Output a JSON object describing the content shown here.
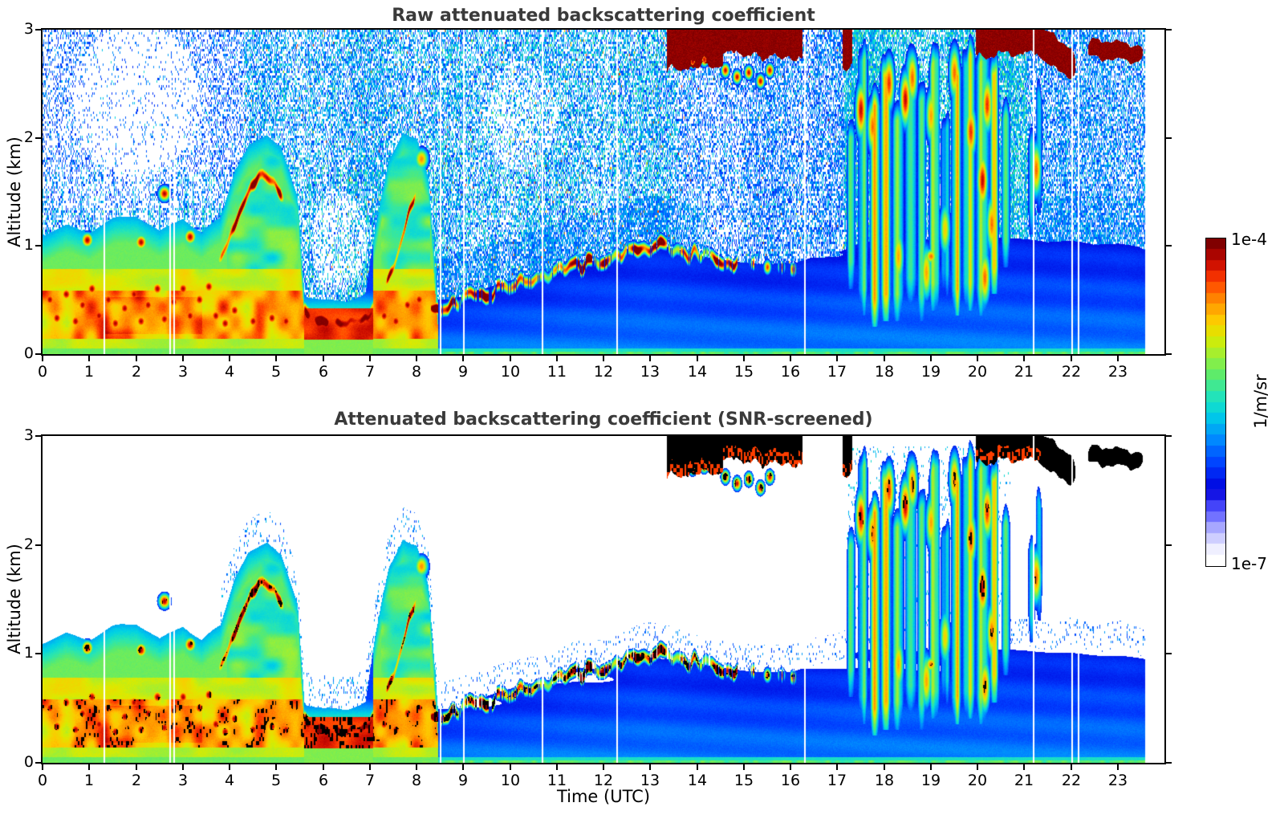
{
  "figure": {
    "background": "#ffffff",
    "axis_color": "#000000",
    "title_color": "#3a3a3a"
  },
  "panels": {
    "raw": {
      "title": "Raw attenuated backscattering coefficient"
    },
    "screened": {
      "title": "Attenuated backscattering coefficient (SNR-screened)"
    }
  },
  "axes": {
    "x": {
      "label": "Time (UTC)",
      "min": 0,
      "max": 24,
      "ticks": [
        0,
        1,
        2,
        3,
        4,
        5,
        6,
        7,
        8,
        9,
        10,
        11,
        12,
        13,
        14,
        15,
        16,
        17,
        18,
        19,
        20,
        21,
        22,
        23
      ]
    },
    "y": {
      "label": "Altitude (km)",
      "min": 0,
      "max": 3,
      "ticks": [
        0,
        1,
        2,
        3
      ]
    }
  },
  "colorbar": {
    "max_label": "1e-4",
    "min_label": "1e-7",
    "unit_label": "1/m/sr",
    "segments": 30
  },
  "chart_data": {
    "type": "heatmap",
    "panels": [
      "Raw attenuated backscattering coefficient",
      "Attenuated backscattering coefficient (SNR-screened)"
    ],
    "x": {
      "unit": "hours UTC",
      "range": [
        0,
        24
      ],
      "data_end": 23.58
    },
    "y": {
      "unit": "km",
      "range": [
        0,
        3
      ]
    },
    "value": {
      "name": "attenuated backscattering coefficient",
      "unit": "1/m/sr",
      "scale": "log10",
      "min": 1e-07,
      "max": 0.0001
    },
    "colormap_stops": [
      [
        0,
        255,
        255,
        255
      ],
      [
        0.04,
        235,
        235,
        255
      ],
      [
        0.1,
        170,
        170,
        255
      ],
      [
        0.16,
        80,
        80,
        255
      ],
      [
        0.22,
        0,
        0,
        220
      ],
      [
        0.3,
        0,
        60,
        255
      ],
      [
        0.38,
        0,
        140,
        255
      ],
      [
        0.46,
        0,
        210,
        230
      ],
      [
        0.52,
        40,
        230,
        180
      ],
      [
        0.58,
        90,
        235,
        110
      ],
      [
        0.64,
        150,
        240,
        60
      ],
      [
        0.7,
        220,
        235,
        0
      ],
      [
        0.76,
        255,
        200,
        0
      ],
      [
        0.82,
        255,
        140,
        0
      ],
      [
        0.88,
        255,
        60,
        0
      ],
      [
        0.94,
        200,
        10,
        0
      ],
      [
        1,
        128,
        0,
        0
      ]
    ],
    "render": {
      "gap_hours": [
        1.3,
        2.72,
        2.8,
        8.5,
        9.0,
        10.68,
        12.28,
        16.3,
        21.18,
        22.0,
        22.15
      ],
      "bl_height": [
        [
          0,
          1.1
        ],
        [
          0.5,
          1.18
        ],
        [
          1,
          1.12
        ],
        [
          1.5,
          1.25
        ],
        [
          2,
          1.3
        ],
        [
          2.5,
          1.15
        ],
        [
          3,
          1.28
        ],
        [
          3.4,
          1.12
        ],
        [
          3.8,
          1.25
        ],
        [
          4.1,
          1.7
        ],
        [
          4.4,
          1.95
        ],
        [
          4.8,
          2.05
        ],
        [
          5.1,
          1.95
        ],
        [
          5.45,
          1.5
        ],
        [
          5.6,
          0.55
        ],
        [
          6,
          0.5
        ],
        [
          6.5,
          0.48
        ],
        [
          6.9,
          0.55
        ],
        [
          7.1,
          1.1
        ],
        [
          7.4,
          1.75
        ],
        [
          7.7,
          2.1
        ],
        [
          8,
          2
        ],
        [
          8.25,
          1.6
        ],
        [
          8.45,
          0.5
        ],
        [
          9,
          0.55
        ],
        [
          9.5,
          0.6
        ],
        [
          10,
          0.66
        ],
        [
          10.5,
          0.72
        ],
        [
          11,
          0.78
        ],
        [
          11.5,
          0.85
        ],
        [
          12,
          0.92
        ],
        [
          12.5,
          0.98
        ],
        [
          13,
          1.02
        ],
        [
          13.4,
          1
        ],
        [
          13.8,
          0.92
        ],
        [
          14.3,
          0.87
        ],
        [
          15,
          0.83
        ],
        [
          15.5,
          0.85
        ],
        [
          16,
          0.82
        ],
        [
          16.5,
          0.86
        ],
        [
          17,
          0.92
        ],
        [
          17.5,
          1
        ],
        [
          18,
          1.05
        ],
        [
          18.5,
          1
        ],
        [
          19,
          0.98
        ],
        [
          19.5,
          1.02
        ],
        [
          20,
          1.05
        ],
        [
          20.6,
          1.1
        ],
        [
          21,
          1.08
        ],
        [
          21.5,
          1.02
        ],
        [
          22,
          1.06
        ],
        [
          22.5,
          1
        ],
        [
          23,
          1.05
        ],
        [
          23.6,
          0.98
        ]
      ],
      "ridge": {
        "path": [
          [
            8.35,
            0.42
          ],
          [
            9,
            0.5
          ],
          [
            9.5,
            0.56
          ],
          [
            10,
            0.62
          ],
          [
            10.5,
            0.68
          ],
          [
            11,
            0.75
          ],
          [
            11.5,
            0.82
          ],
          [
            12,
            0.88
          ],
          [
            12.4,
            0.93
          ],
          [
            12.8,
            0.98
          ],
          [
            13.2,
            1
          ],
          [
            13.5,
            0.97
          ],
          [
            13.9,
            0.92
          ],
          [
            14.3,
            0.89
          ],
          [
            14.8,
            0.86
          ]
        ],
        "w": 0.045,
        "amp": 0.96
      },
      "ridge_tail": [
        [
          15.2,
          0.84
        ],
        [
          15.5,
          0.8
        ],
        [
          15.8,
          0.8
        ],
        [
          16.05,
          0.78
        ]
      ],
      "arcs": [
        {
          "path": [
            [
              3.7,
              0.78
            ],
            [
              3.95,
              1
            ],
            [
              4.2,
              1.3
            ],
            [
              4.45,
              1.55
            ],
            [
              4.7,
              1.65
            ],
            [
              4.95,
              1.58
            ],
            [
              5.2,
              1.4
            ]
          ],
          "w": 0.055,
          "amp": 0.97,
          "cls": 1
        },
        {
          "path": [
            [
              5.5,
              0.42
            ],
            [
              5.8,
              0.33
            ],
            [
              6.2,
              0.3
            ],
            [
              6.6,
              0.3
            ],
            [
              6.95,
              0.34
            ],
            [
              7.15,
              0.5
            ]
          ],
          "w": 0.065,
          "amp": 0.98,
          "cls": 6
        },
        {
          "path": [
            [
              7.25,
              0.55
            ],
            [
              7.5,
              0.8
            ],
            [
              7.7,
              1.1
            ],
            [
              7.9,
              1.4
            ],
            [
              8.05,
              1.58
            ]
          ],
          "w": 0.05,
          "amp": 0.95,
          "cls": 1
        },
        {
          "path": [
            [
              21.2,
              2.93
            ],
            [
              21.6,
              2.82
            ],
            [
              21.9,
              2.72
            ],
            [
              22.1,
              2.66
            ]
          ],
          "w": 0.09,
          "amp": 1,
          "cls": 4
        },
        {
          "path": [
            [
              22.35,
              2.82
            ],
            [
              22.8,
              2.8
            ],
            [
              23.2,
              2.78
            ],
            [
              23.55,
              2.8
            ]
          ],
          "w": 0.05,
          "amp": 0.93,
          "cls": 4
        }
      ],
      "blobs": [
        [
          0.15,
          0.5
        ],
        [
          0.3,
          0.33
        ],
        [
          0.5,
          0.55
        ],
        [
          0.7,
          0.3
        ],
        [
          0.85,
          0.45
        ],
        [
          1.05,
          0.6
        ],
        [
          1.2,
          0.35
        ],
        [
          1.4,
          0.5
        ],
        [
          1.55,
          0.28
        ],
        [
          1.75,
          0.42
        ],
        [
          1.95,
          0.55
        ],
        [
          2.1,
          0.3
        ],
        [
          2.25,
          0.45
        ],
        [
          2.45,
          0.6
        ],
        [
          2.6,
          0.32
        ],
        [
          2.8,
          0.48
        ],
        [
          3,
          0.6
        ],
        [
          3.15,
          0.35
        ],
        [
          3.35,
          0.5
        ],
        [
          3.55,
          0.62
        ],
        [
          3.7,
          0.35
        ],
        [
          3.9,
          0.28
        ],
        [
          4.1,
          0.4
        ],
        [
          4.5,
          0.3
        ],
        [
          4.9,
          0.33
        ],
        [
          5.2,
          0.3
        ],
        [
          7.3,
          0.35
        ],
        [
          7.55,
          0.3
        ],
        [
          7.8,
          0.45
        ],
        [
          8.05,
          0.5
        ],
        [
          0.95,
          1.05
        ],
        [
          2.1,
          1.03
        ],
        [
          3.15,
          1.08
        ],
        [
          2.6,
          1.48
        ],
        [
          8.1,
          1.8,
          0.82,
          0.12,
          0.08
        ],
        [
          19,
          0.9,
          0.85
        ]
      ],
      "clouds": [
        {
          "t0": 13.35,
          "t1": 14.55,
          "zb": 2.78,
          "zt": 3.02
        },
        {
          "t0": 14.55,
          "t1": 16.25,
          "zb": 2.88,
          "zt": 3.02
        },
        {
          "t0": 17.1,
          "t1": 17.32,
          "zb": 2.78,
          "zt": 3.02
        },
        {
          "t0": 19.95,
          "t1": 21.35,
          "zb": 2.88,
          "zt": 3.02
        }
      ],
      "cloud_fragments": [
        [
          14.6,
          2.62
        ],
        [
          14.85,
          2.56
        ],
        [
          15.1,
          2.6
        ],
        [
          15.35,
          2.52
        ],
        [
          15.55,
          2.62
        ],
        [
          13.9,
          2.7
        ],
        [
          14.15,
          2.72
        ]
      ],
      "virga_streaks": [
        [
          17.3,
          2.2,
          0.6,
          0.07,
          0.55
        ],
        [
          17.55,
          2.95,
          0.35,
          0.09,
          0.6
        ],
        [
          17.8,
          2.5,
          0.25,
          0.08,
          0.62
        ],
        [
          18.05,
          2.85,
          0.3,
          0.1,
          0.62
        ],
        [
          18.3,
          2.45,
          0.3,
          0.09,
          0.6
        ],
        [
          18.55,
          2.95,
          0.45,
          0.1,
          0.63
        ],
        [
          18.8,
          2.6,
          0.3,
          0.08,
          0.6
        ],
        [
          19.05,
          2.9,
          0.4,
          0.1,
          0.62
        ],
        [
          19.3,
          2.35,
          0.5,
          0.08,
          0.58
        ],
        [
          19.55,
          2.85,
          0.35,
          0.09,
          0.62
        ],
        [
          19.8,
          2.95,
          0.4,
          0.1,
          0.64
        ],
        [
          20.1,
          2.95,
          0.35,
          0.11,
          0.66
        ],
        [
          20.35,
          2.85,
          0.55,
          0.09,
          0.6
        ],
        [
          20.6,
          2.4,
          0.8,
          0.08,
          0.55
        ],
        [
          21.15,
          2.2,
          1.1,
          0.07,
          0.45
        ],
        [
          21.3,
          2.6,
          1.3,
          0.06,
          0.45
        ]
      ],
      "virga_cores": [
        [
          17.5,
          2.25,
          0.95
        ],
        [
          17.75,
          2.1,
          0.85
        ],
        [
          18.1,
          2.5,
          0.9
        ],
        [
          18.45,
          2.35,
          0.95
        ],
        [
          18.6,
          2.55,
          0.85
        ],
        [
          19,
          2.2,
          0.8
        ],
        [
          19.5,
          2.6,
          0.85
        ],
        [
          19.85,
          2.05,
          0.9
        ],
        [
          20.1,
          1.6,
          0.95
        ],
        [
          20.2,
          2.3,
          0.9
        ],
        [
          20.3,
          1.2,
          0.85
        ],
        [
          21.25,
          1.7,
          0.85
        ],
        [
          18.3,
          0.9,
          0.8
        ],
        [
          18.9,
          0.75,
          0.8
        ],
        [
          19.3,
          1.15,
          0.75
        ],
        [
          20.15,
          0.7,
          0.85
        ]
      ],
      "noise_regions": [
        {
          "t0": 0,
          "t1": 24,
          "z0": 0,
          "z1": 3,
          "p": 0.42,
          "v0": 0.27,
          "vs": 0.17
        },
        {
          "t0": 0,
          "t1": 4.3,
          "z0": 1.35,
          "z1": 3,
          "p": 0.3,
          "v0": 0.27,
          "vs": 0.12
        },
        {
          "t0": 4.3,
          "t1": 8.45,
          "z0": 0,
          "z1": 3,
          "p": 0.5,
          "v0": 0.28,
          "vs": 0.2,
          "bright": 0.01
        },
        {
          "t0": 8.45,
          "t1": 13.6,
          "z0": 0,
          "z1": 3,
          "p": 0.52,
          "v0": 0.28,
          "vs": 0.22,
          "bright": 0.012
        },
        {
          "t0": 13.6,
          "t1": 17.15,
          "z0": 0,
          "z1": 3,
          "p": 0.5,
          "v0": 0.27,
          "vs": 0.15,
          "bright": 0.008
        },
        {
          "t0": 17.15,
          "t1": 21.05,
          "z0": 0.7,
          "z1": 3,
          "p": 0.72,
          "v0": 0.33,
          "vs": 0.2
        },
        {
          "t0": 21.05,
          "t1": 23.6,
          "z0": 0,
          "z1": 3,
          "p": 0.52,
          "v0": 0.28,
          "vs": 0.16
        },
        {
          "t0": 21.05,
          "t1": 23.6,
          "z0": 0,
          "z1": 1.45,
          "p": 0.65,
          "v0": 0.3,
          "vs": 0.13
        }
      ],
      "ridge_halo": {
        "t0": 8.35,
        "t1": 14.2,
        "dz": 0.45,
        "p": 0.7,
        "v0": 0.3,
        "vs": 0.13
      },
      "noise_holes": [
        {
          "tc": 2,
          "zc": 2.35,
          "rt": 1.35,
          "rz": 0.7,
          "f": 0.3
        },
        {
          "tc": 6.35,
          "zc": 1.05,
          "rt": 0.6,
          "rz": 0.45,
          "f": 0.45
        },
        {
          "tc": 10.2,
          "zc": 2.2,
          "rt": 0.8,
          "rz": 0.5,
          "f": 0.6
        }
      ],
      "bottom_noise": [
        {
          "t0": 8.45,
          "t1": 24,
          "rel": 1,
          "dz": 0.25,
          "p": 0.08,
          "v0": 0.3,
          "vs": 0.1
        },
        {
          "t0": 3.8,
          "t1": 8.45,
          "rel": 1,
          "dz": 0.3,
          "p": 0.1,
          "v0": 0.3,
          "vs": 0.15
        },
        {
          "t0": 17.2,
          "t1": 20.7,
          "z0": 0.9,
          "z1": 2.9,
          "p": 0.06,
          "v0": 0.35,
          "vs": 0.15
        }
      ],
      "screen": {
        "threshold": 0.26,
        "ridge_black_p": 0.5,
        "heavy_black_p": 0.62,
        "blob_black_p": 0.35,
        "core_black_p": 0.3,
        "bl_black_p": 0.2,
        "streak_black_p": 0.25,
        "cloud_fringe_p": 0.45
      }
    }
  }
}
